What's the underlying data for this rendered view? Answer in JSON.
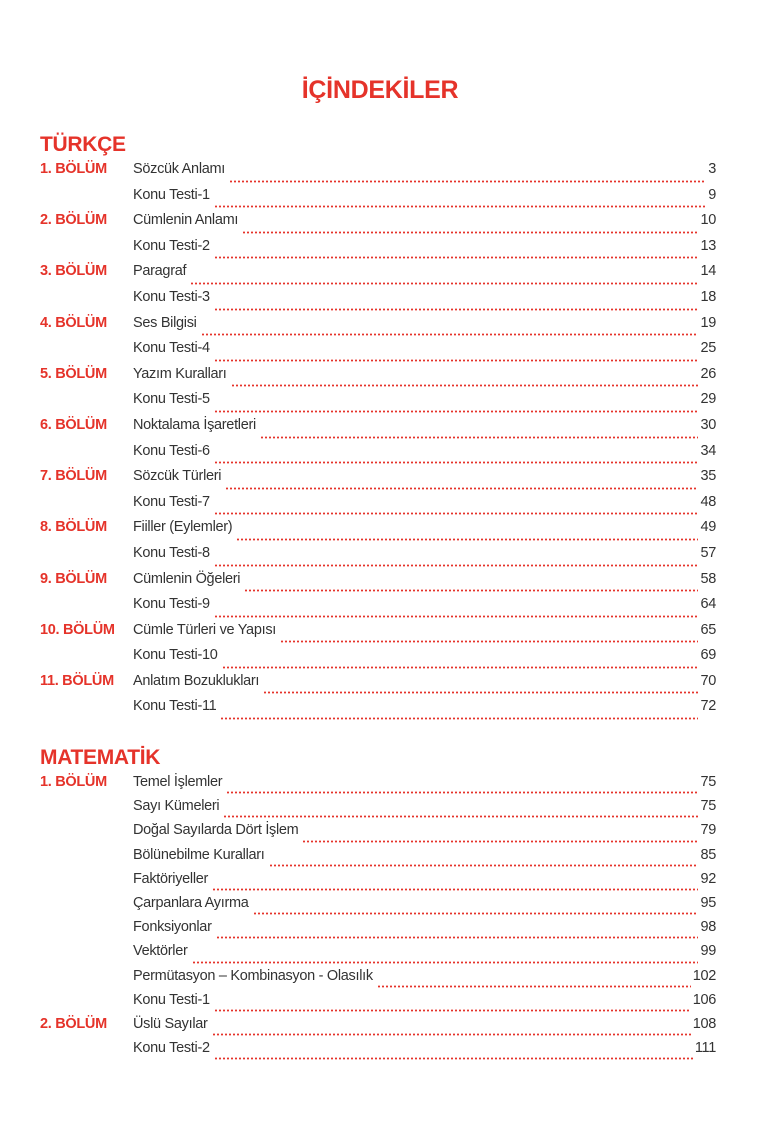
{
  "title": "İÇİNDEKİLER",
  "sections": [
    {
      "heading": "TÜRKÇE",
      "entries": [
        {
          "unit": "1.  BÖLÜM",
          "topic": "Sözcük Anlamı",
          "page": "3"
        },
        {
          "unit": "",
          "topic": "Konu Testi-1",
          "page": "9"
        },
        {
          "unit": "2.  BÖLÜM",
          "topic": "Cümlenin Anlamı",
          "page": "10"
        },
        {
          "unit": "",
          "topic": "Konu Testi-2",
          "page": "13"
        },
        {
          "unit": "3.  BÖLÜM",
          "topic": "Paragraf",
          "page": "14"
        },
        {
          "unit": "",
          "topic": "Konu Testi-3",
          "page": "18"
        },
        {
          "unit": "4.  BÖLÜM",
          "topic": "Ses Bilgisi",
          "page": "19"
        },
        {
          "unit": "",
          "topic": "Konu Testi-4",
          "page": "25"
        },
        {
          "unit": "5.  BÖLÜM",
          "topic": "Yazım Kuralları",
          "page": "26"
        },
        {
          "unit": "",
          "topic": "Konu Testi-5",
          "page": "29"
        },
        {
          "unit": "6.  BÖLÜM",
          "topic": "Noktalama İşaretleri",
          "page": "30"
        },
        {
          "unit": "",
          "topic": "Konu Testi-6",
          "page": "34"
        },
        {
          "unit": "7.  BÖLÜM",
          "topic": "Sözcük Türleri",
          "page": "35"
        },
        {
          "unit": "",
          "topic": "Konu Testi-7",
          "page": "48"
        },
        {
          "unit": "8.  BÖLÜM",
          "topic": "Fiiller (Eylemler)",
          "page": "49"
        },
        {
          "unit": "",
          "topic": "Konu Testi-8",
          "page": "57"
        },
        {
          "unit": "9.  BÖLÜM",
          "topic": "Cümlenin Öğeleri",
          "page": "58"
        },
        {
          "unit": "",
          "topic": "Konu Testi-9",
          "page": "64"
        },
        {
          "unit": "10.  BÖLÜM",
          "topic": "Cümle Türleri ve Yapısı",
          "page": "65"
        },
        {
          "unit": "",
          "topic": "Konu Testi-10",
          "page": "69"
        },
        {
          "unit": "11.  BÖLÜM",
          "topic": "Anlatım Bozuklukları",
          "page": "70"
        },
        {
          "unit": "",
          "topic": "Konu Testi-11",
          "page": "72"
        }
      ]
    },
    {
      "heading": "MATEMATİK",
      "entries": [
        {
          "unit": "1.  BÖLÜM",
          "topic": "Temel İşlemler",
          "page": "75"
        },
        {
          "unit": "",
          "topic": "Sayı Kümeleri",
          "page": "75"
        },
        {
          "unit": "",
          "topic": "Doğal Sayılarda Dört İşlem",
          "page": "79"
        },
        {
          "unit": "",
          "topic": "Bölünebilme Kuralları",
          "page": "85"
        },
        {
          "unit": "",
          "topic": "Faktöriyeller",
          "page": "92"
        },
        {
          "unit": "",
          "topic": "Çarpanlara Ayırma",
          "page": "95"
        },
        {
          "unit": "",
          "topic": "Fonksiyonlar",
          "page": "98"
        },
        {
          "unit": "",
          "topic": "Vektörler",
          "page": "99"
        },
        {
          "unit": "",
          "topic": "Permütasyon – Kombinasyon - Olasılık",
          "page": "102"
        },
        {
          "unit": "",
          "topic": "Konu Testi-1",
          "page": "106"
        },
        {
          "unit": "2.  BÖLÜM",
          "topic": "Üslü Sayılar",
          "page": "108"
        },
        {
          "unit": "",
          "topic": "Konu Testi-2",
          "page": "111"
        }
      ]
    }
  ],
  "colors": {
    "accent": "#e5332a",
    "text": "#333333"
  }
}
